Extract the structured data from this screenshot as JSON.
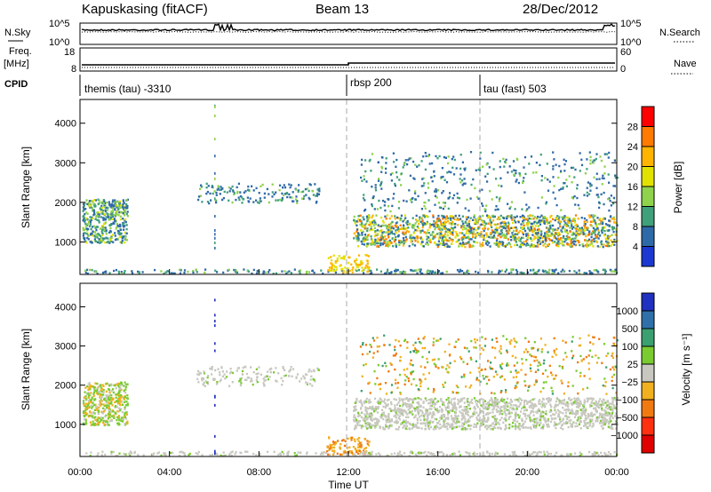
{
  "header": {
    "station": "Kapuskasing (fitACF)",
    "beam": "Beam 13",
    "date": "28/Dec/2012"
  },
  "left_labels": {
    "nsky": "N.Sky",
    "freq_line1": "Freq.",
    "freq_line2": "[MHz]",
    "cpid": "CPID"
  },
  "right_labels": {
    "nsearch": "N.Search",
    "nave": "Nave"
  },
  "cpid_segments": [
    {
      "label": "themis (tau) -3310",
      "start": 0,
      "end": 12
    },
    {
      "label": "rbsp 200",
      "start": 12,
      "end": 18
    },
    {
      "label": "tau (fast) 503",
      "start": 18,
      "end": 24
    }
  ],
  "chart_data": [
    {
      "type": "line",
      "name": "noise-panel",
      "left_ticks": [
        "10^5",
        "10^0"
      ],
      "right_ticks": [
        "10^5",
        "10^0"
      ]
    },
    {
      "type": "line",
      "name": "frequency-panel",
      "left_ticks": [
        "18",
        "8"
      ],
      "right_ticks": [
        "60",
        "0"
      ]
    },
    {
      "type": "heatmap",
      "name": "power-panel",
      "ylabel": "Slant Range [km]",
      "ylim": [
        180,
        4600
      ],
      "yticks": [
        "1000",
        "2000",
        "3000",
        "4000"
      ],
      "colorbar": {
        "label": "Power [dB]",
        "ticks": [
          "28",
          "24",
          "20",
          "16",
          "12",
          "8",
          "4"
        ],
        "colors": [
          "#ff0000",
          "#ff7a00",
          "#ffb400",
          "#e2e200",
          "#8fd24b",
          "#3fa07a",
          "#2f6aa8",
          "#1b38d0"
        ]
      }
    },
    {
      "type": "heatmap",
      "name": "velocity-panel",
      "ylabel": "Slant Range [km]",
      "xlabel": "Time UT",
      "ylim": [
        180,
        4600
      ],
      "yticks": [
        "1000",
        "2000",
        "3000",
        "4000"
      ],
      "xticks": [
        "00:00",
        "04:00",
        "08:00",
        "12:00",
        "16:00",
        "20:00",
        "00:00"
      ],
      "colorbar": {
        "label": "Velocity [m s⁻¹]",
        "ticks": [
          "1000",
          "500",
          "100",
          "25",
          "−25",
          "−100",
          "−500",
          "−1000"
        ],
        "colors": [
          "#2030c0",
          "#3070a8",
          "#3aa070",
          "#7acb30",
          "#c8c8c0",
          "#f0b020",
          "#f07a10",
          "#ff3010",
          "#e00000"
        ]
      }
    }
  ]
}
